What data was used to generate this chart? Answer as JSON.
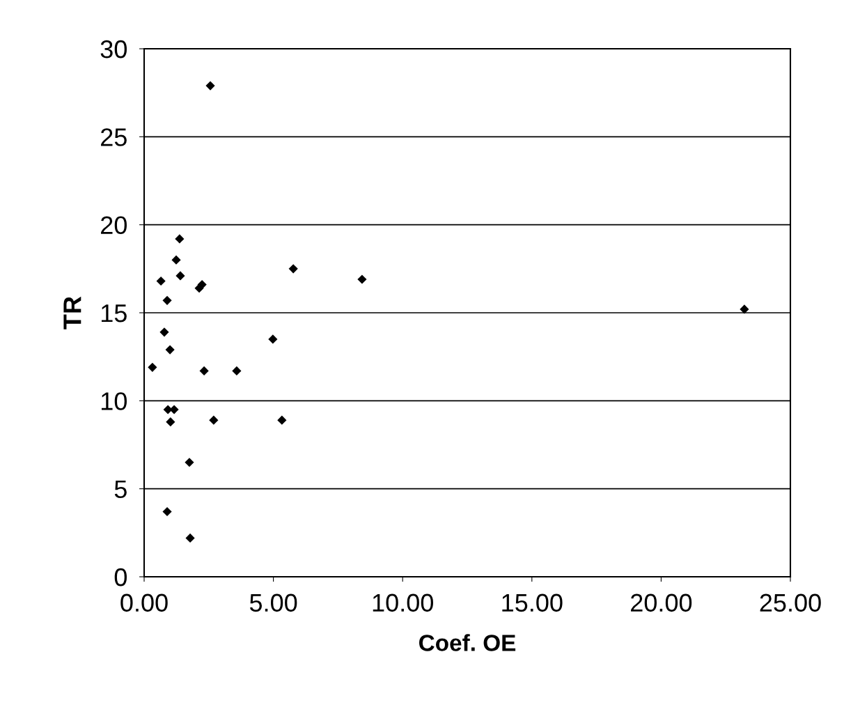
{
  "chart_data": {
    "type": "scatter",
    "xlabel": "Coef. OE",
    "ylabel": "TR",
    "series": [
      {
        "color": "#000000",
        "x": [
          0.32,
          0.65,
          0.78,
          0.89,
          1.0,
          0.92,
          1.16,
          1.02,
          0.89,
          1.24,
          1.37,
          1.4,
          2.24,
          2.13,
          2.32,
          1.75,
          1.78,
          2.56,
          2.69,
          3.58,
          4.98,
          5.33,
          5.77,
          8.43,
          23.22
        ],
        "values": [
          11.9,
          16.8,
          13.9,
          15.7,
          12.9,
          9.5,
          9.5,
          8.8,
          3.7,
          18.0,
          19.2,
          17.1,
          16.6,
          16.4,
          11.7,
          6.5,
          2.2,
          27.9,
          8.9,
          11.7,
          13.5,
          8.9,
          17.5,
          16.9,
          15.2
        ]
      }
    ],
    "xlim": [
      0,
      25
    ],
    "xticks": [
      {
        "value": 0,
        "label": "0.00"
      },
      {
        "value": 5,
        "label": "5.00"
      },
      {
        "value": 10,
        "label": "10.00"
      },
      {
        "value": 15,
        "label": "15.00"
      },
      {
        "value": 20,
        "label": "20.00"
      },
      {
        "value": 25,
        "label": "25.00"
      }
    ],
    "ylim": [
      0,
      30
    ],
    "yticks": [
      0,
      5,
      10,
      15,
      20,
      25,
      30
    ],
    "grid": "y",
    "marker": "diamond",
    "legend": false
  }
}
